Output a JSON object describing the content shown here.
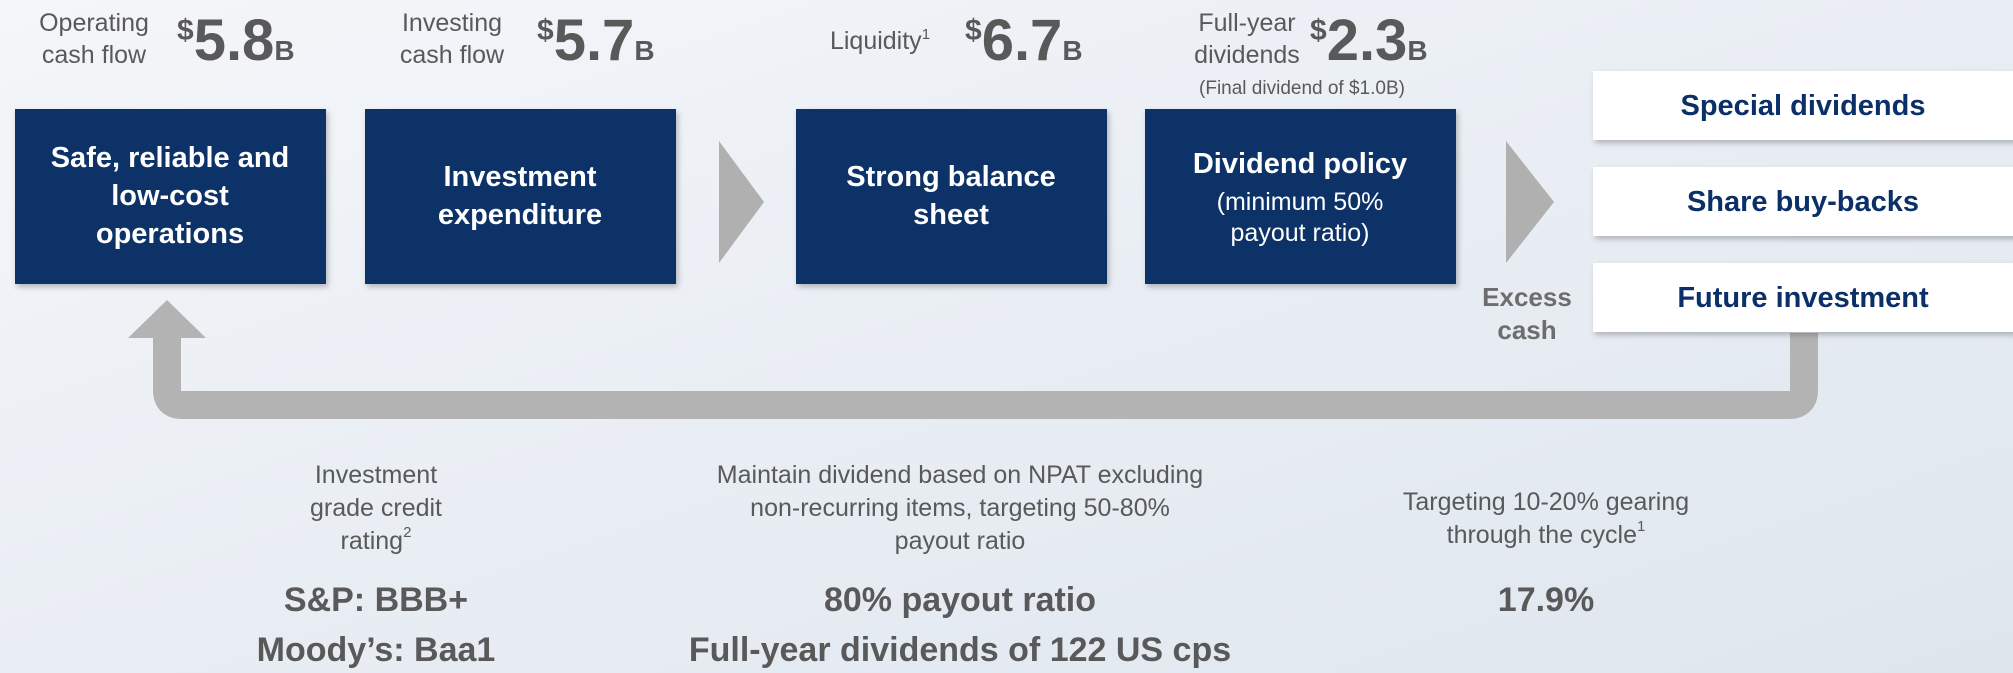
{
  "metrics": [
    {
      "label_lines": [
        "Operating",
        "cash flow"
      ],
      "currency": "$",
      "amount": "5.8",
      "unit": "B"
    },
    {
      "label_lines": [
        "Investing",
        "cash flow"
      ],
      "currency": "$",
      "amount": "5.7",
      "unit": "B"
    },
    {
      "label": "Liquidity",
      "note": "1",
      "currency": "$",
      "amount": "6.7",
      "unit": "B"
    },
    {
      "label_lines": [
        "Full-year",
        "dividends"
      ],
      "currency": "$",
      "amount": "2.3",
      "unit": "B",
      "note_below": "(Final dividend of $1.0B)"
    }
  ],
  "pillars": [
    {
      "title_lines": [
        "Safe, reliable and",
        "low-cost",
        "operations"
      ]
    },
    {
      "title_lines": [
        "Investment",
        "expenditure"
      ]
    },
    {
      "title_lines": [
        "Strong balance",
        "sheet"
      ]
    },
    {
      "title_lines": [
        "Dividend policy"
      ],
      "subtitle_lines": [
        "(minimum 50%",
        "payout ratio)"
      ]
    }
  ],
  "excess_cash_label": [
    "Excess",
    "cash"
  ],
  "uses": [
    "Special dividends",
    "Share buy-backs",
    "Future investment"
  ],
  "targets": [
    {
      "description_lines": [
        "Investment",
        "grade credit",
        "rating"
      ],
      "description_note": "2",
      "results": [
        "S&P: BBB+",
        "Moody’s: Baa1"
      ]
    },
    {
      "description_lines": [
        "Maintain dividend based on NPAT excluding",
        "non-recurring items, targeting 50-80%",
        "payout ratio"
      ],
      "results": [
        "80% payout ratio",
        "Full-year dividends of 122 US cps"
      ]
    },
    {
      "description_lines": [
        "Targeting 10-20% gearing",
        "through the cycle"
      ],
      "description_note": "1",
      "results": [
        "17.9%"
      ]
    }
  ]
}
